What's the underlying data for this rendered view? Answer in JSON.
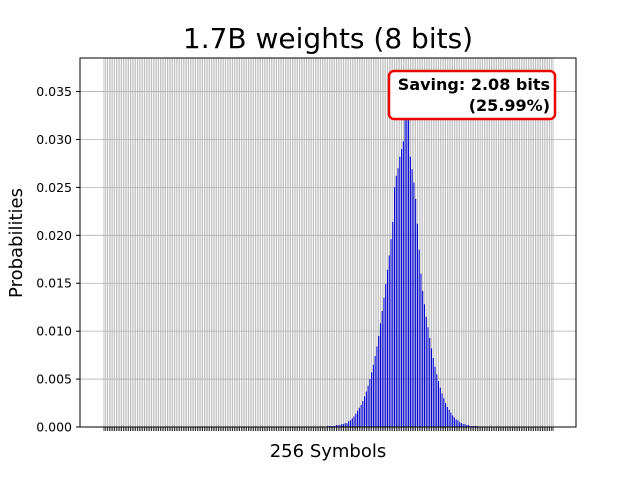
{
  "chart_data": {
    "type": "bar",
    "title": "1.7B weights (8 bits)",
    "xlabel": "256 Symbols",
    "ylabel": "Probabilities",
    "ylim": [
      0,
      0.0385
    ],
    "yticks": [
      0.0,
      0.005,
      0.01,
      0.015,
      0.02,
      0.025,
      0.03,
      0.035
    ],
    "ytick_labels": [
      "0.000",
      "0.005",
      "0.010",
      "0.015",
      "0.020",
      "0.025",
      "0.030",
      "0.035"
    ],
    "grid": true,
    "num_symbols": 256,
    "bar_color": "#0000cc",
    "grid_color": "#b0b0b0",
    "annotation": {
      "line1": "Saving: 2.08 bits",
      "line2": "(25.99%)",
      "border_color": "#ee0000"
    },
    "series": [
      {
        "values": [
          0,
          0,
          0,
          0,
          0,
          0,
          0,
          0,
          0,
          0,
          0,
          0,
          0,
          0,
          0,
          0,
          0,
          0,
          0,
          0,
          0,
          0,
          0,
          0,
          0,
          0,
          0,
          0,
          0,
          0,
          0,
          0,
          0,
          0,
          0,
          0,
          0,
          0,
          0,
          0,
          0,
          0,
          0,
          0,
          0,
          0,
          0,
          0,
          0,
          0,
          0,
          0,
          0,
          0,
          0,
          0,
          0,
          0,
          0,
          0,
          0,
          0,
          0,
          0,
          0,
          0,
          0,
          0,
          0,
          0,
          0,
          0,
          0,
          0,
          0,
          0,
          0,
          0,
          0,
          0,
          0,
          0,
          0,
          0,
          0,
          0,
          0,
          0,
          0,
          0,
          0,
          0,
          0,
          0,
          0,
          0,
          0,
          0,
          0,
          0,
          0,
          0,
          0,
          0,
          0,
          0,
          0,
          0,
          0,
          0,
          0,
          0,
          0,
          0,
          0,
          0,
          0,
          0,
          0,
          0,
          0,
          0,
          0,
          0,
          0,
          0,
          0,
          0.0001,
          0.0001,
          0.0001,
          0.0001,
          0.0001,
          0.0002,
          0.0002,
          0.0002,
          0.0003,
          0.0003,
          0.0004,
          0.0004,
          0.0006,
          0.0007,
          0.0009,
          0.0011,
          0.0014,
          0.0017,
          0.002,
          0.0023,
          0.0027,
          0.0032,
          0.0037,
          0.0043,
          0.005,
          0.0057,
          0.0065,
          0.0074,
          0.0084,
          0.0095,
          0.0108,
          0.0121,
          0.0135,
          0.0149,
          0.0164,
          0.0179,
          0.0196,
          0.0214,
          0.025,
          0.0262,
          0.027,
          0.0282,
          0.029,
          0.0298,
          0.0342,
          0.0368,
          0.0335,
          0.0282,
          0.0269,
          0.0255,
          0.0238,
          0.0212,
          0.0185,
          0.016,
          0.0142,
          0.0128,
          0.0115,
          0.0104,
          0.0093,
          0.0082,
          0.0072,
          0.0063,
          0.0055,
          0.0048,
          0.0041,
          0.0035,
          0.003,
          0.0025,
          0.0021,
          0.0018,
          0.0015,
          0.0012,
          0.001,
          0.0008,
          0.0007,
          0.0005,
          0.0004,
          0.0003,
          0.0003,
          0.0002,
          0.0002,
          0.0001,
          0.0001,
          0.0001,
          0.0001,
          0.0001,
          0,
          0,
          0,
          0,
          0,
          0,
          0,
          0,
          0,
          0,
          0,
          0,
          0,
          0,
          0,
          0,
          0,
          0,
          0,
          0,
          0,
          0,
          0,
          0,
          0,
          0,
          0,
          0,
          0,
          0,
          0,
          0,
          0,
          0,
          0,
          0,
          0,
          0,
          0,
          0,
          0,
          0,
          0,
          0,
          0,
          0,
          0,
          0,
          0,
          0,
          0,
          0,
          0,
          0,
          0,
          0,
          0,
          0,
          0,
          0,
          0,
          0,
          0,
          0,
          0,
          0,
          0,
          0,
          0,
          0,
          0,
          0,
          0,
          0,
          0,
          0,
          0,
          0,
          0,
          0,
          0,
          0,
          0,
          0,
          0,
          0,
          0,
          0,
          0,
          0,
          0,
          0,
          0,
          0,
          0,
          0,
          0,
          0,
          0,
          0,
          0,
          0,
          0,
          0,
          0
        ]
      }
    ]
  }
}
